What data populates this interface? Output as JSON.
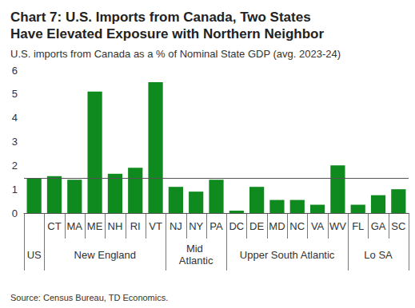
{
  "chart_data": {
    "type": "bar",
    "title": "Chart 7: U.S. Imports from Canada, Two States Have Elevated Exposure with Northern Neighbor",
    "subtitle": "U.S. imports from Canada as a % of Nominal State GDP (avg. 2023-24)",
    "source": "Source: Census Bureau, TD Economics.",
    "categories": [
      null,
      "CT",
      "MA",
      "ME",
      "NH",
      "RI",
      "VT",
      "NJ",
      "NY",
      "PA",
      "DC",
      "DE",
      "MD",
      "NC",
      "VA",
      "WV",
      "FL",
      "GA",
      "SC"
    ],
    "groups": [
      "US",
      "New England",
      "New England",
      "New England",
      "New England",
      "New England",
      "New England",
      "Mid Atlantic",
      "Mid Atlantic",
      "Mid Atlantic",
      "Upper South Atlantic",
      "Upper South Atlantic",
      "Upper South Atlantic",
      "Upper South Atlantic",
      "Upper South Atlantic",
      "Upper South Atlantic",
      "Lo SA",
      "Lo SA",
      "Lo SA"
    ],
    "values": [
      1.45,
      1.55,
      1.4,
      5.1,
      1.65,
      1.9,
      5.5,
      1.1,
      0.9,
      1.4,
      0.1,
      1.1,
      0.55,
      0.55,
      0.35,
      2.0,
      0.35,
      0.75,
      1.0
    ],
    "reference_line": 1.45,
    "color": "#0f8a1e",
    "ylim": [
      0,
      6
    ],
    "yticks": [
      0,
      1,
      2,
      3,
      4,
      5,
      6
    ],
    "grid": false
  }
}
